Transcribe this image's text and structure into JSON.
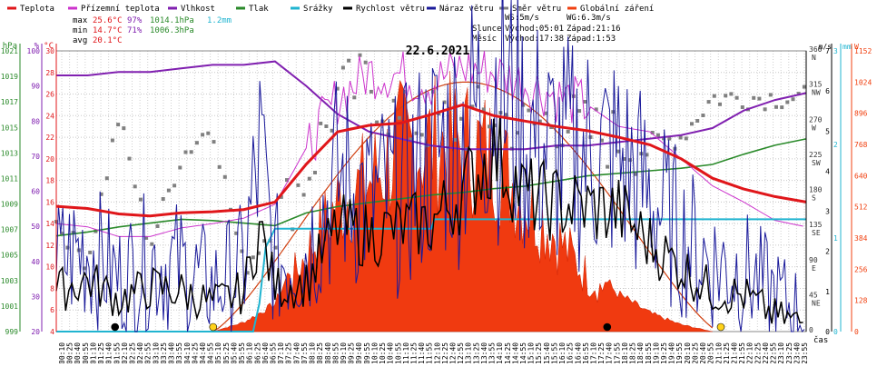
{
  "chart_data": {
    "type": "line",
    "title": "22.6.2021",
    "legend": [
      {
        "name": "Teplota",
        "color": "#e0161a"
      },
      {
        "name": "Přízemní teplota",
        "color": "#cc33cc"
      },
      {
        "name": "Vlhkost",
        "color": "#8020b0"
      },
      {
        "name": "Tlak",
        "color": "#2a8a2a"
      },
      {
        "name": "Srážky",
        "color": "#20b4d0"
      },
      {
        "name": "Rychlost větru",
        "color": "#000000"
      },
      {
        "name": "Náraz větru",
        "color": "#1a1a9a"
      },
      {
        "name": "Směr větru",
        "color": "#808080"
      },
      {
        "name": "Globální záření",
        "color": "#f04010"
      }
    ],
    "stats": [
      {
        "label": "max",
        "temp": "25.6°C",
        "hum": "97%",
        "press": "1014.1hPa",
        "rain": "1.2mm"
      },
      {
        "label": "min",
        "temp": "14.7°C",
        "hum": "71%",
        "press": "1006.3hPa",
        "rain": ""
      },
      {
        "label": "avg",
        "temp": "20.1°C",
        "hum": "",
        "press": "",
        "rain": ""
      }
    ],
    "info": {
      "ws": "WS:5m/s",
      "wg": "WG:6.3m/s",
      "sun_label": "Slunce",
      "sun_rise": "Východ:05:01",
      "sun_set": "Západ:21:16",
      "moon_label": "Měsíc",
      "moon_rise": "Východ:17:38",
      "moon_set": "Západ:1:53"
    },
    "axes": {
      "hpa": {
        "label": "hPa",
        "ticks": [
          "999",
          "1001",
          "1003",
          "1005",
          "1007",
          "1009",
          "1011",
          "1013",
          "1015",
          "1017",
          "1019",
          "1021"
        ]
      },
      "pct": {
        "label": "%",
        "ticks": [
          "20",
          "30",
          "40",
          "50",
          "60",
          "70",
          "80",
          "90",
          "100"
        ]
      },
      "c": {
        "label": "°C",
        "ticks": [
          "4",
          "6",
          "8",
          "10",
          "12",
          "14",
          "16",
          "18",
          "20",
          "22",
          "24",
          "26",
          "28",
          "30"
        ]
      },
      "dir": {
        "label": "",
        "ticks": [
          {
            "deg": "0",
            "name": ""
          },
          {
            "deg": "45",
            "name": "NE"
          },
          {
            "deg": "90",
            "name": "E"
          },
          {
            "deg": "135",
            "name": "SE"
          },
          {
            "deg": "180",
            "name": "S"
          },
          {
            "deg": "225",
            "name": "SW"
          },
          {
            "deg": "270",
            "name": "W"
          },
          {
            "deg": "315",
            "name": "NW"
          },
          {
            "deg": "360",
            "name": "N"
          }
        ]
      },
      "ms": {
        "label": "m/s",
        "ticks": [
          "0",
          "1",
          "2",
          "3",
          "4",
          "5",
          "6",
          "7"
        ]
      },
      "mm": {
        "label": "mm",
        "ticks": [
          "0",
          "1",
          "2",
          "3"
        ]
      },
      "w": {
        "label": "W",
        "ticks": [
          "0",
          "128",
          "256",
          "384",
          "512",
          "640",
          "768",
          "896",
          "1024",
          "1152"
        ]
      },
      "x_unit": "čas",
      "x_ticks": [
        "00:10",
        "00:25",
        "00:40",
        "00:55",
        "01:10",
        "01:25",
        "01:40",
        "01:55",
        "02:10",
        "02:25",
        "02:40",
        "02:55",
        "03:10",
        "03:25",
        "03:40",
        "03:55",
        "04:10",
        "04:25",
        "04:40",
        "04:55",
        "05:10",
        "05:25",
        "05:40",
        "05:55",
        "06:10",
        "06:25",
        "06:40",
        "06:55",
        "07:10",
        "07:25",
        "07:40",
        "07:55",
        "08:10",
        "08:25",
        "08:40",
        "08:55",
        "09:10",
        "09:25",
        "09:40",
        "09:55",
        "10:10",
        "10:25",
        "10:40",
        "10:55",
        "11:10",
        "11:25",
        "11:40",
        "11:55",
        "12:10",
        "12:25",
        "12:40",
        "12:55",
        "13:10",
        "13:25",
        "13:40",
        "13:55",
        "14:10",
        "14:25",
        "14:40",
        "14:55",
        "15:10",
        "15:25",
        "15:40",
        "15:55",
        "16:10",
        "16:25",
        "16:40",
        "16:55",
        "17:10",
        "17:25",
        "17:40",
        "17:55",
        "18:10",
        "18:25",
        "18:40",
        "18:55",
        "19:10",
        "19:25",
        "19:40",
        "19:55",
        "20:10",
        "20:25",
        "20:40",
        "20:55",
        "21:10",
        "21:25",
        "21:40",
        "21:55",
        "22:10",
        "22:25",
        "22:40",
        "22:55",
        "23:10",
        "23:25",
        "23:40",
        "23:55"
      ]
    },
    "series": [
      {
        "name": "Teplota",
        "unit": "°C",
        "x_hours": [
          0,
          1,
          2,
          3,
          4,
          5,
          6,
          7,
          8,
          9,
          10,
          11,
          12,
          13,
          14,
          15,
          16,
          17,
          18,
          19,
          20,
          21,
          22,
          23,
          24
        ],
        "values": [
          15.6,
          15.4,
          14.9,
          14.7,
          15.0,
          15.1,
          15.3,
          16.0,
          19.5,
          22.5,
          23.1,
          23.3,
          24.1,
          25.0,
          24.0,
          23.5,
          23.0,
          22.6,
          22.0,
          21.3,
          20.0,
          18.2,
          17.2,
          16.5,
          16.0
        ]
      },
      {
        "name": "Přízemní teplota",
        "unit": "°C",
        "x_hours": [
          0,
          1,
          2,
          3,
          4,
          5,
          6,
          7,
          8,
          9,
          10,
          11,
          12,
          13,
          14,
          15,
          16,
          17,
          18,
          19,
          20,
          21,
          22,
          23,
          24
        ],
        "values": [
          14.0,
          13.7,
          12.8,
          12.8,
          13.6,
          14.0,
          14.5,
          15.8,
          21.0,
          25.6,
          28.0,
          27.8,
          27.0,
          28.5,
          28.0,
          27.0,
          25.8,
          25.0,
          23.0,
          22.5,
          20.0,
          17.5,
          16.0,
          14.3,
          13.7
        ]
      },
      {
        "name": "Vlhkost",
        "unit": "%",
        "x_hours": [
          0,
          1,
          2,
          3,
          4,
          5,
          6,
          7,
          8,
          9,
          10,
          11,
          12,
          13,
          14,
          15,
          16,
          17,
          18,
          19,
          20,
          21,
          22,
          23,
          24
        ],
        "values": [
          93,
          93,
          94,
          94,
          95,
          96,
          96,
          97,
          90,
          82,
          77,
          75,
          73,
          72,
          72,
          72,
          73,
          73,
          74,
          75,
          76,
          78,
          83,
          86,
          88
        ]
      },
      {
        "name": "Tlak",
        "unit": "hPa",
        "x_hours": [
          0,
          1,
          2,
          3,
          4,
          5,
          6,
          7,
          8,
          9,
          10,
          11,
          12,
          13,
          14,
          15,
          16,
          17,
          18,
          19,
          20,
          21,
          22,
          23,
          24
        ],
        "values": [
          1006.5,
          1006.8,
          1007.2,
          1007.5,
          1007.8,
          1007.7,
          1007.5,
          1007.3,
          1008.3,
          1008.8,
          1009.1,
          1009.4,
          1009.7,
          1009.9,
          1010.2,
          1010.4,
          1010.8,
          1011.2,
          1011.4,
          1011.6,
          1011.8,
          1012.1,
          1012.9,
          1013.6,
          1014.1
        ]
      },
      {
        "name": "Srážky",
        "unit": "mm",
        "x_hours": [
          0,
          6.3,
          6.5,
          6.7,
          7.0,
          12.0,
          12.1,
          24
        ],
        "values": [
          0,
          0,
          0.3,
          0.9,
          1.1,
          1.1,
          1.2,
          1.2
        ]
      },
      {
        "name": "Rychlost větru",
        "unit": "m/s",
        "x_hours": [
          0,
          1,
          2,
          3,
          4,
          5,
          6,
          6.5,
          7,
          8,
          9,
          10,
          11,
          12,
          13,
          14,
          15,
          16,
          17,
          18,
          19,
          20,
          21,
          22,
          23,
          24
        ],
        "values": [
          1.0,
          1.3,
          0.8,
          1.1,
          1.0,
          0.7,
          1.0,
          2.6,
          1.1,
          1.2,
          2.6,
          2.4,
          2.6,
          2.7,
          3.5,
          4.5,
          3.4,
          3.2,
          3.1,
          3.0,
          2.2,
          1.6,
          1.0,
          0.9,
          0.4,
          0.2
        ]
      },
      {
        "name": "Náraz větru",
        "unit": "m/s",
        "x_hours": [
          0,
          1,
          2,
          3,
          4,
          5,
          6,
          6.5,
          7,
          8,
          9,
          10,
          11,
          12,
          13,
          14,
          15,
          16,
          17,
          18,
          19,
          20,
          21,
          22,
          23,
          24
        ],
        "values": [
          1.7,
          2.1,
          1.3,
          1.8,
          1.6,
          1.1,
          1.6,
          4.4,
          1.7,
          2.0,
          3.8,
          3.3,
          3.4,
          4.4,
          4.9,
          6.2,
          5.0,
          4.4,
          4.5,
          4.3,
          3.4,
          2.4,
          1.7,
          1.5,
          0.9,
          0.4
        ]
      },
      {
        "name": "Směr větru",
        "unit": "°",
        "x_hours": [
          0,
          1,
          2,
          3,
          4,
          5,
          6,
          7,
          8,
          9,
          10,
          11,
          12,
          13,
          14,
          15,
          16,
          17,
          18,
          19,
          20,
          21,
          22,
          23,
          24
        ],
        "values": [
          140,
          90,
          275,
          110,
          225,
          265,
          80,
          140,
          200,
          300,
          320,
          265,
          270,
          265,
          280,
          260,
          275,
          255,
          245,
          240,
          250,
          300,
          300,
          300,
          300
        ]
      },
      {
        "name": "Globální záření",
        "unit": "W",
        "x_hours": [
          5,
          6,
          7,
          8,
          9,
          10,
          11,
          12,
          13,
          14,
          15,
          16,
          17,
          18,
          19,
          20,
          21
        ],
        "values": [
          0,
          40,
          120,
          420,
          700,
          820,
          1000,
          1024,
          1024,
          960,
          720,
          520,
          300,
          160,
          80,
          30,
          0
        ]
      }
    ],
    "xlim_hours": [
      0,
      24
    ],
    "grid": true
  }
}
